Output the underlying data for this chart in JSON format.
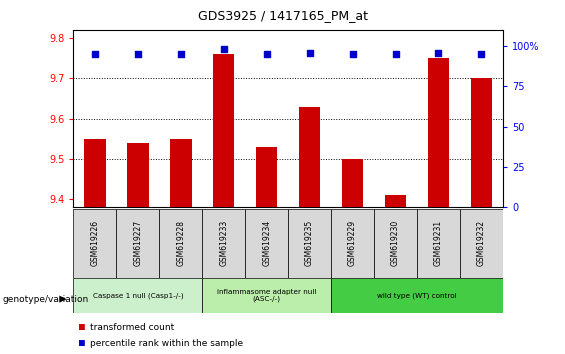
{
  "title": "GDS3925 / 1417165_PM_at",
  "samples": [
    "GSM619226",
    "GSM619227",
    "GSM619228",
    "GSM619233",
    "GSM619234",
    "GSM619235",
    "GSM619229",
    "GSM619230",
    "GSM619231",
    "GSM619232"
  ],
  "red_values": [
    9.55,
    9.54,
    9.55,
    9.76,
    9.53,
    9.63,
    9.5,
    9.41,
    9.75,
    9.7
  ],
  "blue_values": [
    95,
    95,
    95,
    98,
    95,
    96,
    95,
    95,
    96,
    95
  ],
  "ylim_left": [
    9.38,
    9.82
  ],
  "ylim_right": [
    0,
    110
  ],
  "yticks_left": [
    9.4,
    9.5,
    9.6,
    9.7,
    9.8
  ],
  "yticks_right": [
    0,
    25,
    50,
    75,
    100
  ],
  "groups": [
    {
      "label": "Caspase 1 null (Casp1-/-)",
      "start": 0,
      "end": 3,
      "color": "#ccf0cc"
    },
    {
      "label": "inflammasome adapter null\n(ASC-/-)",
      "start": 3,
      "end": 6,
      "color": "#bbeeaa"
    },
    {
      "label": "wild type (WT) control",
      "start": 6,
      "end": 10,
      "color": "#44cc44"
    }
  ],
  "bar_color": "#cc0000",
  "marker_color": "#0000cc",
  "legend_label_red": "transformed count",
  "legend_label_blue": "percentile rank within the sample",
  "genotype_label": "genotype/variation",
  "bar_width": 0.5,
  "cell_color": "#d8d8d8"
}
